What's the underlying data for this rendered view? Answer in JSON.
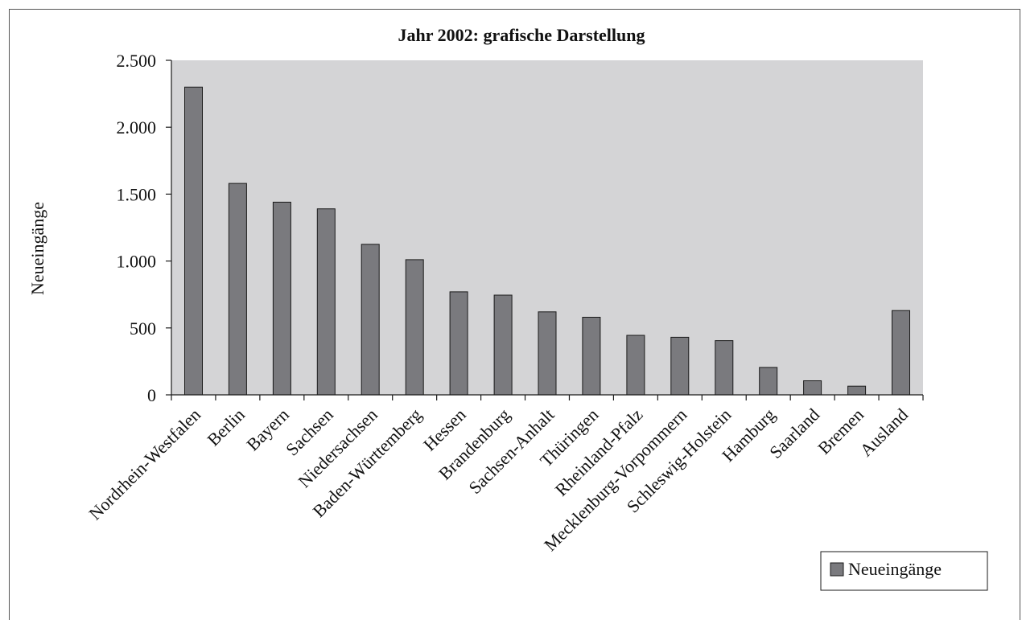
{
  "chart_data": {
    "type": "bar",
    "title": "Jahr 2002: grafische Darstellung",
    "xlabel": "",
    "ylabel": "Neueingänge",
    "ylim": [
      0,
      2500
    ],
    "yticks": [
      0,
      500,
      1000,
      1500,
      2000,
      2500
    ],
    "ytick_labels": [
      "0",
      "500",
      "1.000",
      "1.500",
      "2.000",
      "2.500"
    ],
    "categories": [
      "Nordrhein-Westfalen",
      "Berlin",
      "Bayern",
      "Sachsen",
      "Niedersachsen",
      "Baden-Württemberg",
      "Hessen",
      "Brandenburg",
      "Sachsen-Anhalt",
      "Thüringen",
      "Rheinland-Pfalz",
      "Mecklenburg-Vorpommern",
      "Schleswig-Holstein",
      "Hamburg",
      "Saarland",
      "Bremen",
      "Ausland"
    ],
    "series": [
      {
        "name": "Neueingänge",
        "values": [
          2300,
          1580,
          1440,
          1390,
          1125,
          1010,
          770,
          745,
          620,
          580,
          445,
          430,
          405,
          205,
          105,
          65,
          630
        ]
      }
    ],
    "legend_position": "bottom-right",
    "grid": false,
    "colors": {
      "plot_background": "#d4d4d6",
      "bar_fill": "#7a7a7e",
      "bar_stroke": "#1a1a1a",
      "axis": "#1a1a1a"
    }
  }
}
